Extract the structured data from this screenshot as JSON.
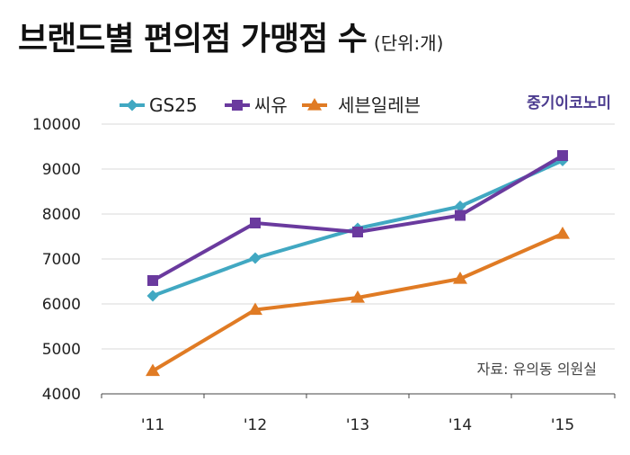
{
  "title": "브랜드별 편의점 가맹점 수",
  "unit": "(단위:개)",
  "brand_label": "중기이코노미",
  "source": "자료: 유의동 의원실",
  "colors": {
    "gs25": "#41a8c2",
    "cu": "#6a3a9e",
    "seven": "#e07b24",
    "grid": "#d9d9d9",
    "axis": "#444444"
  },
  "chart_data": {
    "type": "line",
    "categories": [
      "'11",
      "'12",
      "'13",
      "'14",
      "'15"
    ],
    "ylim": [
      4000,
      10000
    ],
    "yticks": [
      4000,
      5000,
      6000,
      7000,
      8000,
      9000,
      10000
    ],
    "grid": true,
    "legend_position": "top",
    "series": [
      {
        "name": "GS25",
        "values": [
          6180,
          7020,
          7680,
          8170,
          9190
        ],
        "marker": "diamond",
        "color": "#41a8c2"
      },
      {
        "name": "씨유",
        "values": [
          6520,
          7800,
          7600,
          7970,
          9300
        ],
        "marker": "square",
        "color": "#6a3a9e"
      },
      {
        "name": "세븐일레븐",
        "values": [
          4510,
          5870,
          6140,
          6560,
          7560
        ],
        "marker": "triangle",
        "color": "#e07b24"
      }
    ]
  }
}
